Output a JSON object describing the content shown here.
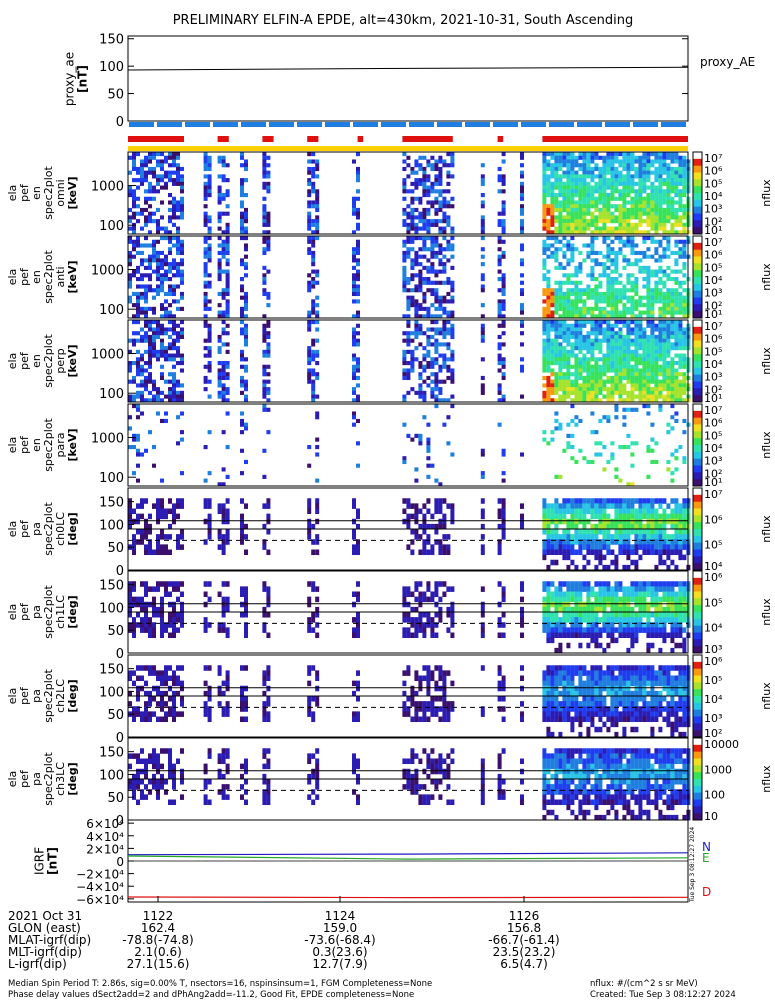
{
  "title": "PRELIMINARY ELFIN-A EPDE, alt=430km, 2021-10-31, South Ascending",
  "colors": {
    "blue_bar": "#1e7fe0",
    "red_bar": "#e01010",
    "yellow_bar": "#ffd000",
    "black": "#000000",
    "igrf_n": "#1d1dbf",
    "igrf_e": "#22a822",
    "igrf_d": "#dd1111"
  },
  "proxy_ae": {
    "ylabel_lines": [
      "proxy_ae",
      "[nT]"
    ],
    "legend": "proxy_AE",
    "ticks": [
      "0",
      "50",
      "100",
      "150"
    ],
    "ylim": [
      0,
      155
    ],
    "series": [
      {
        "x": 0,
        "y": 93
      },
      {
        "x": 0.5,
        "y": 96
      },
      {
        "x": 1,
        "y": 98
      }
    ]
  },
  "bars": {
    "blue_segments": 20,
    "red_segments": [
      [
        0.0,
        0.1
      ],
      [
        0.16,
        0.18
      ],
      [
        0.24,
        0.26
      ],
      [
        0.32,
        0.34
      ],
      [
        0.41,
        0.42
      ],
      [
        0.49,
        0.58
      ],
      [
        0.66,
        0.67
      ],
      [
        0.74,
        1.0
      ]
    ]
  },
  "spectrograms": [
    {
      "type": "energy",
      "ylabel_lines": [
        "ela",
        "pef",
        "en",
        "spec2plot",
        "omni",
        "[keV]"
      ],
      "ticks": [
        "100",
        "1000"
      ],
      "cb_ticks": [
        "10⁷",
        "10⁶",
        "10⁵",
        "10⁴",
        "10³",
        "10²",
        "10¹"
      ],
      "cb_label": "nflux"
    },
    {
      "type": "energy",
      "ylabel_lines": [
        "ela",
        "pef",
        "en",
        "spec2plot",
        "anti",
        "[keV]"
      ],
      "ticks": [
        "100",
        "1000"
      ],
      "cb_ticks": [
        "10⁷",
        "10⁶",
        "10⁵",
        "10⁴",
        "10³",
        "10²",
        "10¹"
      ],
      "cb_label": "nflux"
    },
    {
      "type": "energy",
      "ylabel_lines": [
        "ela",
        "pef",
        "en",
        "spec2plot",
        "perp",
        "[keV]"
      ],
      "ticks": [
        "100",
        "1000"
      ],
      "cb_ticks": [
        "10⁷",
        "10⁶",
        "10⁵",
        "10⁴",
        "10³",
        "10²",
        "10¹"
      ],
      "cb_label": "nflux"
    },
    {
      "type": "energy",
      "ylabel_lines": [
        "ela",
        "pef",
        "en",
        "spec2plot",
        "para",
        "[keV]"
      ],
      "ticks": [
        "100",
        "1000"
      ],
      "cb_ticks": [
        "10⁷",
        "10⁶",
        "10⁵",
        "10⁴",
        "10³",
        "10²",
        "10¹"
      ],
      "cb_label": "nflux"
    },
    {
      "type": "pa",
      "ylabel_lines": [
        "ela",
        "pef",
        "pa",
        "spec2plot",
        "ch0LC",
        "[deg]"
      ],
      "ticks": [
        "0",
        "50",
        "100",
        "150"
      ],
      "cb_ticks": [
        "10⁷",
        "10⁶",
        "10⁵",
        "10⁴"
      ],
      "cb_label": "nflux"
    },
    {
      "type": "pa",
      "ylabel_lines": [
        "ela",
        "pef",
        "pa",
        "spec2plot",
        "ch1LC",
        "[deg]"
      ],
      "ticks": [
        "0",
        "50",
        "100",
        "150"
      ],
      "cb_ticks": [
        "10⁶",
        "10⁵",
        "10⁴",
        "10³"
      ],
      "cb_label": "nflux"
    },
    {
      "type": "pa",
      "ylabel_lines": [
        "ela",
        "pef",
        "pa",
        "spec2plot",
        "ch2LC",
        "[deg]"
      ],
      "ticks": [
        "0",
        "50",
        "100",
        "150"
      ],
      "cb_ticks": [
        "10⁶",
        "10⁵",
        "10⁴",
        "10³",
        "10²"
      ],
      "cb_label": "nflux"
    },
    {
      "type": "pa",
      "ylabel_lines": [
        "ela",
        "pef",
        "pa",
        "spec2plot",
        "ch3LC",
        "[deg]"
      ],
      "ticks": [
        "0",
        "50",
        "100",
        "150"
      ],
      "cb_ticks": [
        "10000",
        "1000",
        "100",
        "10"
      ],
      "cb_label": "nflux"
    }
  ],
  "igrf": {
    "ylabel_lines": [
      "IGRF",
      "[nT]"
    ],
    "ticks": [
      "−6×10⁴",
      "−4×10⁴",
      "−2×10⁴",
      "0",
      "2×10⁴",
      "4×10⁴",
      "6×10⁴"
    ],
    "ylim": [
      -65000,
      65000
    ],
    "legend": [
      "N",
      "E",
      "D"
    ],
    "series": [
      {
        "name": "N",
        "values": [
          10000,
          11000,
          13000
        ]
      },
      {
        "name": "E",
        "values": [
          8000,
          3000,
          5000
        ]
      },
      {
        "name": "D",
        "values": [
          -57000,
          -58000,
          -57500
        ]
      }
    ],
    "side_text": "Tue Sep 3 08:12:27 2024"
  },
  "axis_table": {
    "rows": [
      {
        "label": "2021 Oct 31",
        "values": [
          "1122",
          "1124",
          "1126"
        ]
      },
      {
        "label": "GLON (east)",
        "values": [
          "162.4",
          "159.0",
          "156.8"
        ]
      },
      {
        "label": "MLAT-igrf(dip)",
        "values": [
          "-78.8(-74.8)",
          "-73.6(-68.4)",
          "-66.7(-61.4)"
        ]
      },
      {
        "label": "MLT-igrf(dip)",
        "values": [
          "2.1(0.6)",
          "0.3(23.6)",
          "23.5(23.2)"
        ]
      },
      {
        "label": "L-igrf(dip)",
        "values": [
          "27.1(15.6)",
          "12.7(7.9)",
          "6.5(4.7)"
        ]
      }
    ]
  },
  "footer": {
    "line1": "Median Spin Period T: 2.86s, sig=0.00% T, nsectors=16, nspinsinsum=1, FGM Completeness=None",
    "line2": "Phase delay values dSect2add=2 and dPhAng2add=-11.2, Good Fit, EPDE completeness=None",
    "units": "nflux: #/(cm^2 s sr MeV)",
    "created": "Created: Tue Sep  3 08:12:27 2024"
  }
}
